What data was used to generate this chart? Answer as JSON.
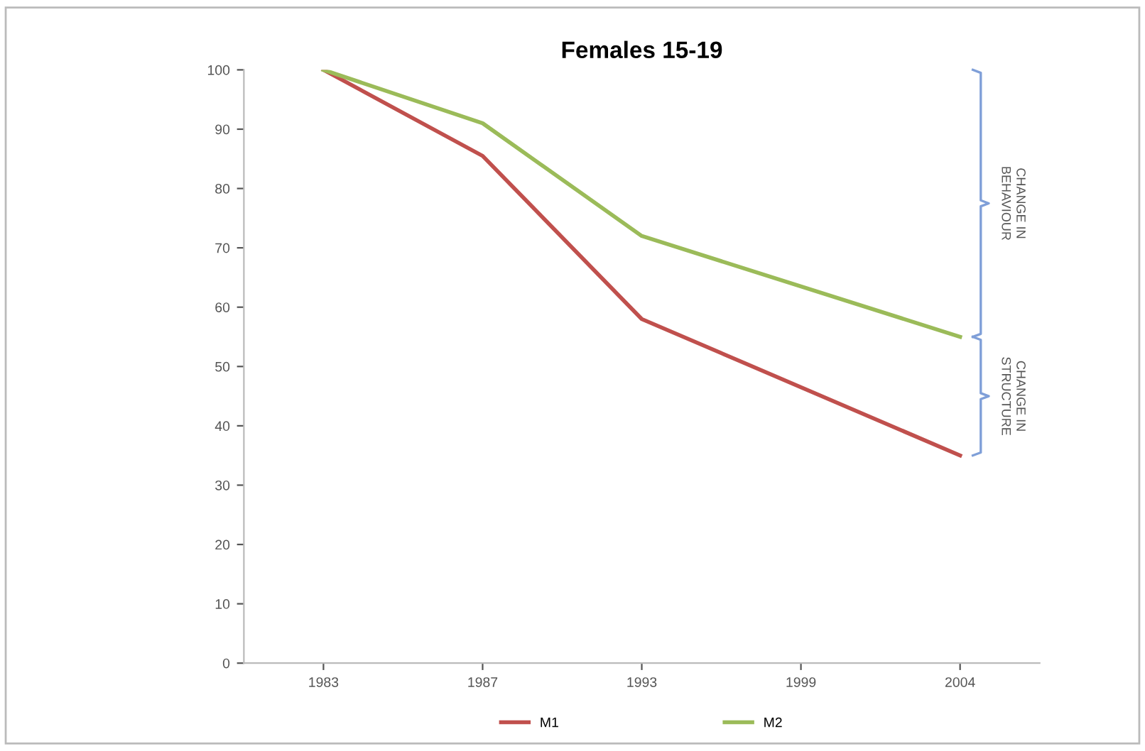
{
  "chart_data": {
    "type": "line",
    "title": "Females 15-19",
    "categories": [
      "1983",
      "1987",
      "1993",
      "1999",
      "2004"
    ],
    "series": [
      {
        "name": "M1",
        "color": "#c0504d",
        "values": [
          100,
          85.5,
          58,
          null,
          35
        ]
      },
      {
        "name": "M2",
        "color": "#9bbb59",
        "values": [
          100,
          91,
          72,
          null,
          55
        ]
      }
    ],
    "ylim": [
      0,
      100
    ],
    "yticks": [
      0,
      10,
      20,
      30,
      40,
      50,
      60,
      70,
      80,
      90,
      100
    ],
    "grid": false,
    "legend": "bottom",
    "marker": "none",
    "line_style": "solid",
    "annotations": [
      "CHANGE IN\nBEHAVIOUR",
      "CHANGE IN\nSTRUCTURE"
    ]
  }
}
